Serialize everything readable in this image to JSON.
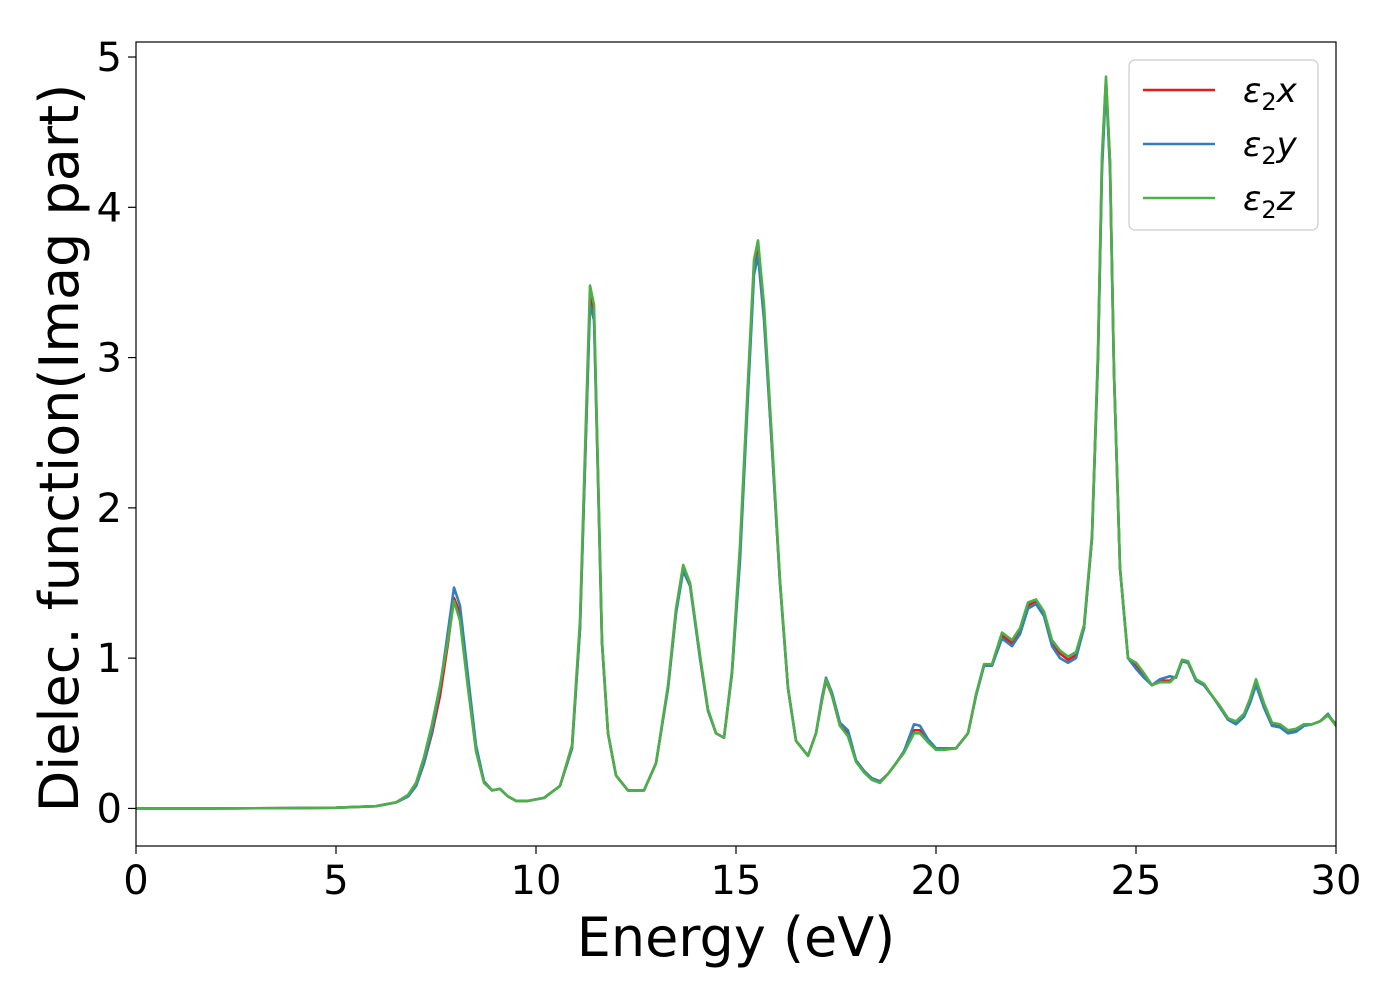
{
  "chart_data": {
    "type": "line",
    "title": "",
    "xlabel": "Energy (eV)",
    "ylabel": "Dielec. function(Imag part)",
    "xlim": [
      0,
      30
    ],
    "ylim": [
      -0.25,
      5.1
    ],
    "xticks": [
      0,
      5,
      10,
      15,
      20,
      25,
      30
    ],
    "yticks": [
      0,
      1,
      2,
      3,
      4,
      5
    ],
    "grid": false,
    "legend_position": "top-right",
    "series": [
      {
        "name": "ε₂x",
        "legend_main": "ε",
        "legend_sub": "2",
        "legend_suffix": "x",
        "color": "#e41a1c",
        "x": [
          0,
          2,
          4,
          5,
          6,
          6.5,
          6.8,
          7.0,
          7.2,
          7.4,
          7.6,
          7.8,
          7.95,
          8.1,
          8.3,
          8.5,
          8.7,
          8.9,
          9.1,
          9.3,
          9.5,
          9.8,
          10.2,
          10.6,
          10.9,
          11.1,
          11.25,
          11.35,
          11.45,
          11.55,
          11.65,
          11.8,
          12.0,
          12.3,
          12.7,
          13.0,
          13.3,
          13.5,
          13.68,
          13.85,
          14.1,
          14.3,
          14.5,
          14.7,
          14.9,
          15.1,
          15.3,
          15.45,
          15.55,
          15.7,
          15.9,
          16.1,
          16.3,
          16.5,
          16.8,
          17.0,
          17.15,
          17.25,
          17.4,
          17.6,
          17.8,
          18.0,
          18.2,
          18.4,
          18.6,
          18.8,
          19.0,
          19.2,
          19.45,
          19.6,
          19.8,
          20.0,
          20.2,
          20.5,
          20.8,
          21.0,
          21.2,
          21.4,
          21.65,
          21.9,
          22.1,
          22.3,
          22.5,
          22.7,
          22.9,
          23.1,
          23.3,
          23.5,
          23.7,
          23.9,
          24.05,
          24.15,
          24.25,
          24.35,
          24.45,
          24.6,
          24.8,
          25.0,
          25.2,
          25.4,
          25.6,
          25.85,
          26.0,
          26.15,
          26.3,
          26.5,
          26.7,
          26.9,
          27.1,
          27.3,
          27.5,
          27.7,
          27.85,
          28.0,
          28.2,
          28.4,
          28.6,
          28.8,
          29.0,
          29.2,
          29.4,
          29.6,
          29.8,
          30.0
        ],
        "values": [
          0.0,
          0.0,
          0.002,
          0.005,
          0.015,
          0.04,
          0.08,
          0.15,
          0.3,
          0.5,
          0.75,
          1.1,
          1.4,
          1.3,
          0.85,
          0.4,
          0.18,
          0.12,
          0.13,
          0.08,
          0.05,
          0.05,
          0.07,
          0.15,
          0.4,
          1.2,
          2.5,
          3.4,
          3.3,
          2.2,
          1.1,
          0.5,
          0.22,
          0.12,
          0.12,
          0.3,
          0.8,
          1.3,
          1.6,
          1.5,
          1.0,
          0.65,
          0.5,
          0.47,
          0.9,
          1.7,
          2.8,
          3.6,
          3.75,
          3.3,
          2.4,
          1.5,
          0.8,
          0.45,
          0.35,
          0.5,
          0.72,
          0.85,
          0.75,
          0.55,
          0.5,
          0.32,
          0.25,
          0.2,
          0.18,
          0.23,
          0.3,
          0.38,
          0.52,
          0.52,
          0.45,
          0.4,
          0.4,
          0.4,
          0.5,
          0.75,
          0.95,
          0.95,
          1.15,
          1.1,
          1.18,
          1.35,
          1.38,
          1.3,
          1.1,
          1.03,
          0.99,
          1.02,
          1.2,
          1.8,
          3.0,
          4.3,
          4.85,
          4.3,
          2.9,
          1.6,
          1.0,
          0.95,
          0.88,
          0.82,
          0.85,
          0.85,
          0.88,
          0.98,
          0.97,
          0.85,
          0.82,
          0.75,
          0.68,
          0.6,
          0.57,
          0.62,
          0.72,
          0.84,
          0.68,
          0.56,
          0.55,
          0.51,
          0.52,
          0.56,
          0.56,
          0.58,
          0.62,
          0.56
        ]
      },
      {
        "name": "ε₂y",
        "legend_main": "ε",
        "legend_sub": "2",
        "legend_suffix": "y",
        "color": "#377eb8",
        "x": [
          0,
          2,
          4,
          5,
          6,
          6.5,
          6.8,
          7.0,
          7.2,
          7.4,
          7.6,
          7.8,
          7.95,
          8.1,
          8.3,
          8.5,
          8.7,
          8.9,
          9.1,
          9.3,
          9.5,
          9.8,
          10.2,
          10.6,
          10.9,
          11.1,
          11.25,
          11.35,
          11.45,
          11.55,
          11.65,
          11.8,
          12.0,
          12.3,
          12.7,
          13.0,
          13.3,
          13.5,
          13.68,
          13.85,
          14.1,
          14.3,
          14.5,
          14.7,
          14.9,
          15.1,
          15.3,
          15.45,
          15.55,
          15.7,
          15.9,
          16.1,
          16.3,
          16.5,
          16.8,
          17.0,
          17.15,
          17.25,
          17.4,
          17.6,
          17.8,
          18.0,
          18.2,
          18.4,
          18.6,
          18.8,
          19.0,
          19.2,
          19.45,
          19.6,
          19.8,
          20.0,
          20.2,
          20.5,
          20.8,
          21.0,
          21.2,
          21.4,
          21.65,
          21.9,
          22.1,
          22.3,
          22.5,
          22.7,
          22.9,
          23.1,
          23.3,
          23.5,
          23.7,
          23.9,
          24.05,
          24.15,
          24.25,
          24.35,
          24.45,
          24.6,
          24.8,
          25.0,
          25.2,
          25.4,
          25.6,
          25.85,
          26.0,
          26.15,
          26.3,
          26.5,
          26.7,
          26.9,
          27.1,
          27.3,
          27.5,
          27.7,
          27.85,
          28.0,
          28.2,
          28.4,
          28.6,
          28.8,
          29.0,
          29.2,
          29.4,
          29.6,
          29.8,
          30.0
        ],
        "values": [
          0.0,
          0.0,
          0.002,
          0.005,
          0.015,
          0.04,
          0.08,
          0.15,
          0.3,
          0.52,
          0.8,
          1.18,
          1.47,
          1.35,
          0.88,
          0.42,
          0.18,
          0.12,
          0.13,
          0.08,
          0.05,
          0.05,
          0.07,
          0.15,
          0.4,
          1.2,
          2.5,
          3.35,
          3.25,
          2.2,
          1.1,
          0.5,
          0.22,
          0.12,
          0.12,
          0.3,
          0.8,
          1.3,
          1.58,
          1.48,
          1.0,
          0.65,
          0.5,
          0.47,
          0.9,
          1.65,
          2.75,
          3.55,
          3.68,
          3.25,
          2.4,
          1.5,
          0.8,
          0.45,
          0.35,
          0.5,
          0.74,
          0.87,
          0.77,
          0.57,
          0.52,
          0.32,
          0.25,
          0.2,
          0.18,
          0.23,
          0.3,
          0.38,
          0.56,
          0.55,
          0.46,
          0.4,
          0.4,
          0.4,
          0.5,
          0.75,
          0.95,
          0.95,
          1.13,
          1.08,
          1.16,
          1.33,
          1.36,
          1.28,
          1.08,
          1.0,
          0.97,
          1.0,
          1.2,
          1.8,
          3.0,
          4.25,
          4.82,
          4.25,
          2.9,
          1.6,
          1.0,
          0.93,
          0.87,
          0.82,
          0.86,
          0.88,
          0.87,
          0.98,
          0.97,
          0.85,
          0.82,
          0.75,
          0.67,
          0.59,
          0.56,
          0.61,
          0.7,
          0.82,
          0.67,
          0.55,
          0.54,
          0.5,
          0.51,
          0.55,
          0.56,
          0.58,
          0.63,
          0.55
        ]
      },
      {
        "name": "ε₂z",
        "legend_main": "ε",
        "legend_sub": "2",
        "legend_suffix": "z",
        "color": "#4daf4a",
        "x": [
          0,
          2,
          4,
          5,
          6,
          6.5,
          6.8,
          7.0,
          7.2,
          7.4,
          7.6,
          7.8,
          7.95,
          8.1,
          8.3,
          8.5,
          8.7,
          8.9,
          9.1,
          9.3,
          9.5,
          9.8,
          10.2,
          10.6,
          10.9,
          11.1,
          11.25,
          11.35,
          11.45,
          11.55,
          11.65,
          11.8,
          12.0,
          12.3,
          12.7,
          13.0,
          13.3,
          13.5,
          13.68,
          13.85,
          14.1,
          14.3,
          14.5,
          14.7,
          14.9,
          15.1,
          15.3,
          15.45,
          15.55,
          15.7,
          15.9,
          16.1,
          16.3,
          16.5,
          16.8,
          17.0,
          17.15,
          17.25,
          17.4,
          17.6,
          17.8,
          18.0,
          18.2,
          18.4,
          18.6,
          18.8,
          19.0,
          19.2,
          19.45,
          19.6,
          19.8,
          20.0,
          20.2,
          20.5,
          20.8,
          21.0,
          21.2,
          21.4,
          21.65,
          21.9,
          22.1,
          22.3,
          22.5,
          22.7,
          22.9,
          23.1,
          23.3,
          23.5,
          23.7,
          23.9,
          24.05,
          24.15,
          24.25,
          24.35,
          24.45,
          24.6,
          24.8,
          25.0,
          25.2,
          25.4,
          25.6,
          25.85,
          26.0,
          26.15,
          26.3,
          26.5,
          26.7,
          26.9,
          27.1,
          27.3,
          27.5,
          27.7,
          27.85,
          28.0,
          28.2,
          28.4,
          28.6,
          28.8,
          29.0,
          29.2,
          29.4,
          29.6,
          29.8,
          30.0
        ],
        "values": [
          0.0,
          0.0,
          0.002,
          0.005,
          0.015,
          0.04,
          0.09,
          0.17,
          0.34,
          0.56,
          0.82,
          1.12,
          1.38,
          1.25,
          0.8,
          0.38,
          0.17,
          0.12,
          0.13,
          0.08,
          0.05,
          0.05,
          0.07,
          0.15,
          0.42,
          1.25,
          2.6,
          3.48,
          3.35,
          2.25,
          1.12,
          0.5,
          0.22,
          0.12,
          0.12,
          0.3,
          0.82,
          1.33,
          1.62,
          1.5,
          1.02,
          0.66,
          0.5,
          0.47,
          0.92,
          1.75,
          2.85,
          3.65,
          3.78,
          3.35,
          2.45,
          1.52,
          0.8,
          0.45,
          0.35,
          0.5,
          0.72,
          0.86,
          0.75,
          0.55,
          0.48,
          0.31,
          0.24,
          0.19,
          0.17,
          0.23,
          0.3,
          0.37,
          0.5,
          0.5,
          0.44,
          0.39,
          0.39,
          0.4,
          0.5,
          0.76,
          0.96,
          0.96,
          1.17,
          1.12,
          1.2,
          1.37,
          1.39,
          1.31,
          1.12,
          1.05,
          1.01,
          1.04,
          1.22,
          1.82,
          3.05,
          4.35,
          4.87,
          4.3,
          2.9,
          1.6,
          1.0,
          0.97,
          0.9,
          0.82,
          0.84,
          0.84,
          0.88,
          0.99,
          0.98,
          0.86,
          0.83,
          0.75,
          0.68,
          0.6,
          0.58,
          0.63,
          0.73,
          0.86,
          0.7,
          0.57,
          0.56,
          0.52,
          0.53,
          0.56,
          0.56,
          0.58,
          0.62,
          0.55
        ]
      }
    ]
  }
}
